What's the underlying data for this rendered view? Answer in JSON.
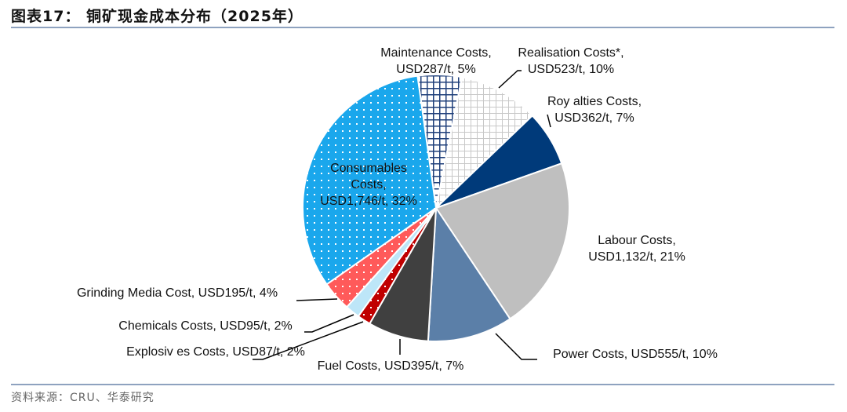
{
  "title": "图表17：  铜矿现金成本分布（2025年）",
  "source": "资料来源：CRU、华泰研究",
  "chart_data": {
    "type": "pie",
    "title": "",
    "start_angle_deg": -8,
    "direction": "clockwise",
    "slices": [
      {
        "name": "Maintenance Costs",
        "value": 287,
        "percent": 5,
        "lines": [
          "Maintenance Costs,",
          "USD287/t, 5%"
        ],
        "color": "#1f3f7a",
        "pattern": "grid-dark"
      },
      {
        "name": "Realisation Costs*",
        "value": 523,
        "percent": 10,
        "lines": [
          "Realisation Costs*,",
          "USD523/t, 10%"
        ],
        "color": "#c8c8c8",
        "pattern": "grid-light"
      },
      {
        "name": "Roy alties Costs",
        "value": 362,
        "percent": 7,
        "lines": [
          "Roy alties Costs,",
          "USD362/t, 7%"
        ],
        "color": "#003a7a",
        "pattern": "solid"
      },
      {
        "name": "Labour Costs",
        "value": 1132,
        "percent": 21,
        "lines": [
          "Labour Costs,",
          "USD1,132/t, 21%"
        ],
        "color": "#bfbfbf",
        "pattern": "solid"
      },
      {
        "name": "Power Costs",
        "value": 555,
        "percent": 10,
        "lines": [
          "Power Costs, USD555/t, 10%"
        ],
        "color": "#5b7fa8",
        "pattern": "solid"
      },
      {
        "name": "Fuel Costs",
        "value": 395,
        "percent": 7,
        "lines": [
          "Fuel Costs, USD395/t, 7%"
        ],
        "color": "#404040",
        "pattern": "solid"
      },
      {
        "name": "Explosiv es Costs",
        "value": 87,
        "percent": 2,
        "lines": [
          "Explosiv es Costs, USD87/t, 2%"
        ],
        "color": "#c00000",
        "pattern": "dots"
      },
      {
        "name": "Chemicals Costs",
        "value": 95,
        "percent": 2,
        "lines": [
          "Chemicals Costs, USD95/t, 2%"
        ],
        "color": "#bde6f8",
        "pattern": "solid"
      },
      {
        "name": "Grinding Media Cost",
        "value": 195,
        "percent": 4,
        "lines": [
          "Grinding Media Cost, USD195/t, 4%"
        ],
        "color": "#ff5a5a",
        "pattern": "dots"
      },
      {
        "name": "Consumables Costs",
        "value": 1746,
        "percent": 32,
        "lines": [
          "Consumables",
          "Costs,",
          "USD1,746/t, 32%"
        ],
        "color": "#1aa7ec",
        "pattern": "dots"
      }
    ]
  }
}
